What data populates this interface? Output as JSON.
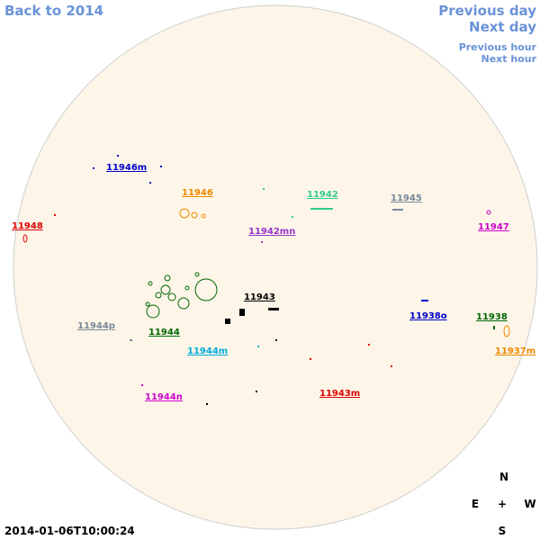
{
  "nav": {
    "back": "Back to 2014",
    "previous_day": "Previous day",
    "next_day": "Next day",
    "previous_hour": "Previous hour",
    "next_hour": "Next hour"
  },
  "timestamp": "2014-01-06T10:00:24",
  "compass": {
    "n": "N",
    "e": "E",
    "center": "+",
    "w": "W",
    "s": "S"
  },
  "regions": [
    {
      "label": "11946m",
      "color": "#0000cc"
    },
    {
      "label": "11946",
      "color": "#ee8800"
    },
    {
      "label": "11942",
      "color": "#33cc88"
    },
    {
      "label": "11945",
      "color": "#778899"
    },
    {
      "label": "11948",
      "color": "#dd0000"
    },
    {
      "label": "11947",
      "color": "#cc00cc"
    },
    {
      "label": "11942mn",
      "color": "#9933cc"
    },
    {
      "label": "11943",
      "color": "#000000"
    },
    {
      "label": "11938o",
      "color": "#0000cc"
    },
    {
      "label": "11938",
      "color": "#006600"
    },
    {
      "label": "11944p",
      "color": "#778899"
    },
    {
      "label": "11944",
      "color": "#006600"
    },
    {
      "label": "11944m",
      "color": "#00aadd"
    },
    {
      "label": "11937m",
      "color": "#ee8800"
    },
    {
      "label": "11944n",
      "color": "#cc00cc"
    },
    {
      "label": "11943m",
      "color": "#dd0000"
    }
  ]
}
